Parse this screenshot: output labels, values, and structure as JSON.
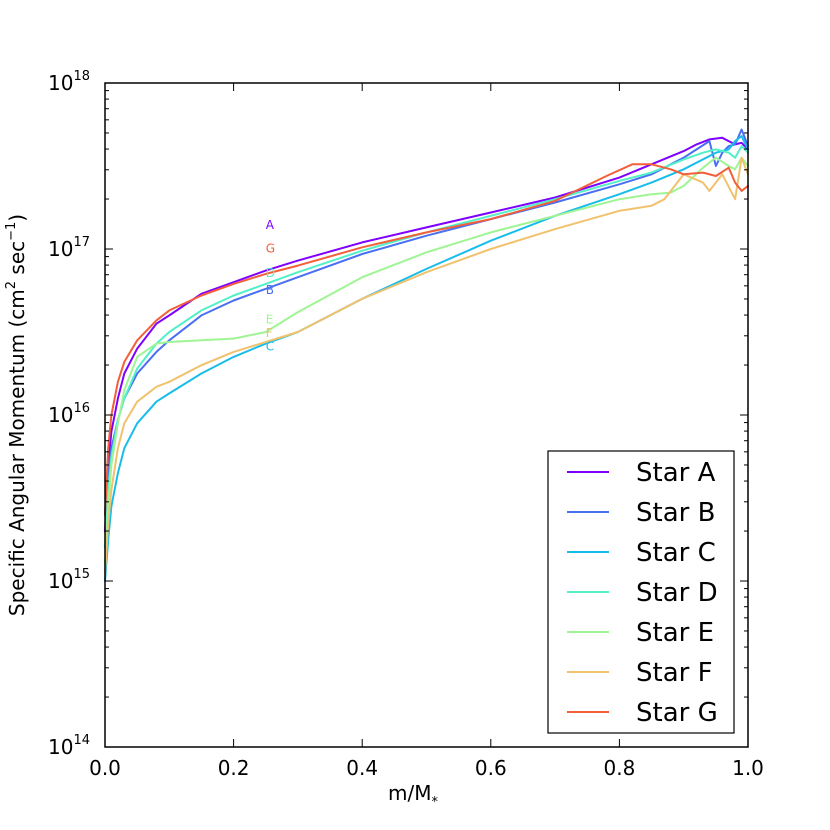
{
  "chart_data": {
    "type": "line",
    "xlabel_main": "m/M",
    "xlabel_sub": "*",
    "ylabel_pre": "Specific Angular Momentum (cm",
    "ylabel_sup1": "2",
    "ylabel_mid": " sec",
    "ylabel_sup2": "−1",
    "ylabel_post": ")",
    "xlim": [
      0,
      1
    ],
    "ylim_log10": [
      14,
      18
    ],
    "y_scale": "log",
    "grid": false,
    "legend_position": "lower-right",
    "x_ticks": [
      {
        "value": 0.0,
        "label": "0.0"
      },
      {
        "value": 0.2,
        "label": "0.2"
      },
      {
        "value": 0.4,
        "label": "0.4"
      },
      {
        "value": 0.6,
        "label": "0.6"
      },
      {
        "value": 0.8,
        "label": "0.8"
      },
      {
        "value": 1.0,
        "label": "1.0"
      }
    ],
    "y_ticks": [
      {
        "exp": 14,
        "base": "10",
        "sup": "14"
      },
      {
        "exp": 15,
        "base": "10",
        "sup": "15"
      },
      {
        "exp": 16,
        "base": "10",
        "sup": "16"
      },
      {
        "exp": 17,
        "base": "10",
        "sup": "17"
      },
      {
        "exp": 18,
        "base": "10",
        "sup": "18"
      }
    ],
    "series": [
      {
        "name": "Star A",
        "annot": "A",
        "color": "#7f00ff",
        "annot_y": 17.12,
        "x": [
          0,
          0.005,
          0.01,
          0.02,
          0.03,
          0.05,
          0.08,
          0.1,
          0.15,
          0.2,
          0.25,
          0.3,
          0.4,
          0.5,
          0.6,
          0.7,
          0.8,
          0.85,
          0.9,
          0.92,
          0.94,
          0.96,
          0.97,
          0.98,
          0.99,
          1.0
        ],
        "y": [
          15.3,
          15.7,
          15.9,
          16.1,
          16.25,
          16.4,
          16.55,
          16.6,
          16.73,
          16.8,
          16.87,
          16.93,
          17.04,
          17.13,
          17.22,
          17.31,
          17.43,
          17.51,
          17.59,
          17.63,
          17.66,
          17.67,
          17.65,
          17.63,
          17.64,
          17.6
        ]
      },
      {
        "name": "Star B",
        "annot": "B",
        "color": "#4a6ff3",
        "annot_y": 16.73,
        "x": [
          0,
          0.005,
          0.01,
          0.02,
          0.03,
          0.05,
          0.08,
          0.1,
          0.15,
          0.2,
          0.25,
          0.3,
          0.4,
          0.5,
          0.6,
          0.7,
          0.8,
          0.85,
          0.9,
          0.92,
          0.94,
          0.95,
          0.96,
          0.97,
          0.98,
          0.99,
          1.0
        ],
        "y": [
          15.4,
          15.65,
          15.8,
          15.97,
          16.1,
          16.25,
          16.38,
          16.45,
          16.6,
          16.69,
          16.76,
          16.83,
          16.97,
          17.08,
          17.18,
          17.28,
          17.39,
          17.45,
          17.55,
          17.6,
          17.65,
          17.5,
          17.58,
          17.62,
          17.63,
          17.72,
          17.62
        ]
      },
      {
        "name": "Star C",
        "annot": "C",
        "color": "#18bde9",
        "annot_y": 16.39,
        "x": [
          0,
          0.005,
          0.01,
          0.02,
          0.03,
          0.05,
          0.08,
          0.1,
          0.15,
          0.2,
          0.25,
          0.3,
          0.4,
          0.5,
          0.6,
          0.7,
          0.8,
          0.85,
          0.9,
          0.93,
          0.95,
          0.97,
          0.98,
          0.99,
          1.0
        ],
        "y": [
          15.0,
          15.25,
          15.45,
          15.65,
          15.8,
          15.95,
          16.08,
          16.13,
          16.25,
          16.35,
          16.43,
          16.5,
          16.7,
          16.88,
          17.05,
          17.2,
          17.33,
          17.4,
          17.48,
          17.54,
          17.58,
          17.6,
          17.65,
          17.68,
          17.6
        ]
      },
      {
        "name": "Star D",
        "annot": "D",
        "color": "#52f0c8",
        "annot_y": 16.83,
        "x": [
          0,
          0.005,
          0.01,
          0.02,
          0.03,
          0.05,
          0.08,
          0.1,
          0.15,
          0.2,
          0.25,
          0.3,
          0.4,
          0.5,
          0.6,
          0.7,
          0.8,
          0.85,
          0.9,
          0.93,
          0.95,
          0.97,
          0.98,
          0.99,
          1.0
        ],
        "y": [
          15.2,
          15.55,
          15.75,
          15.97,
          16.1,
          16.28,
          16.43,
          16.5,
          16.63,
          16.72,
          16.79,
          16.86,
          16.99,
          17.1,
          17.2,
          17.3,
          17.41,
          17.46,
          17.54,
          17.58,
          17.6,
          17.58,
          17.55,
          17.62,
          17.58
        ]
      },
      {
        "name": "Star E",
        "annot": "E",
        "color": "#9ff593",
        "annot_y": 16.55,
        "x": [
          0,
          0.005,
          0.01,
          0.02,
          0.03,
          0.05,
          0.08,
          0.1,
          0.15,
          0.2,
          0.25,
          0.3,
          0.4,
          0.5,
          0.6,
          0.7,
          0.8,
          0.85,
          0.88,
          0.9,
          0.93,
          0.95,
          0.97,
          0.98,
          0.99,
          1.0
        ],
        "y": [
          15.1,
          15.45,
          15.7,
          15.95,
          16.15,
          16.35,
          16.43,
          16.44,
          16.45,
          16.46,
          16.5,
          16.62,
          16.83,
          16.98,
          17.1,
          17.2,
          17.3,
          17.33,
          17.34,
          17.38,
          17.49,
          17.55,
          17.5,
          17.48,
          17.55,
          17.5
        ]
      },
      {
        "name": "Star F",
        "annot": "F",
        "color": "#f0c26e",
        "annot_y": 16.47,
        "x": [
          0,
          0.005,
          0.01,
          0.02,
          0.03,
          0.05,
          0.08,
          0.1,
          0.15,
          0.2,
          0.25,
          0.3,
          0.4,
          0.5,
          0.6,
          0.7,
          0.8,
          0.85,
          0.87,
          0.9,
          0.93,
          0.94,
          0.96,
          0.98,
          0.99,
          1.0
        ],
        "y": [
          15.05,
          15.35,
          15.55,
          15.8,
          15.95,
          16.08,
          16.17,
          16.2,
          16.3,
          16.38,
          16.44,
          16.5,
          16.7,
          16.86,
          17.0,
          17.12,
          17.23,
          17.26,
          17.3,
          17.45,
          17.4,
          17.35,
          17.45,
          17.3,
          17.55,
          17.45
        ]
      },
      {
        "name": "Star G",
        "annot": "G",
        "color": "#f25f3a",
        "annot_y": 16.98,
        "x": [
          0,
          0.005,
          0.01,
          0.02,
          0.03,
          0.05,
          0.08,
          0.1,
          0.15,
          0.2,
          0.25,
          0.3,
          0.4,
          0.5,
          0.6,
          0.7,
          0.78,
          0.82,
          0.85,
          0.88,
          0.9,
          0.93,
          0.95,
          0.97,
          0.98,
          0.99,
          1.0
        ],
        "y": [
          15.4,
          15.8,
          16.0,
          16.2,
          16.32,
          16.45,
          16.57,
          16.63,
          16.72,
          16.79,
          16.85,
          16.9,
          17.01,
          17.1,
          17.18,
          17.29,
          17.44,
          17.51,
          17.51,
          17.48,
          17.45,
          17.46,
          17.44,
          17.49,
          17.4,
          17.35,
          17.38
        ]
      }
    ]
  }
}
